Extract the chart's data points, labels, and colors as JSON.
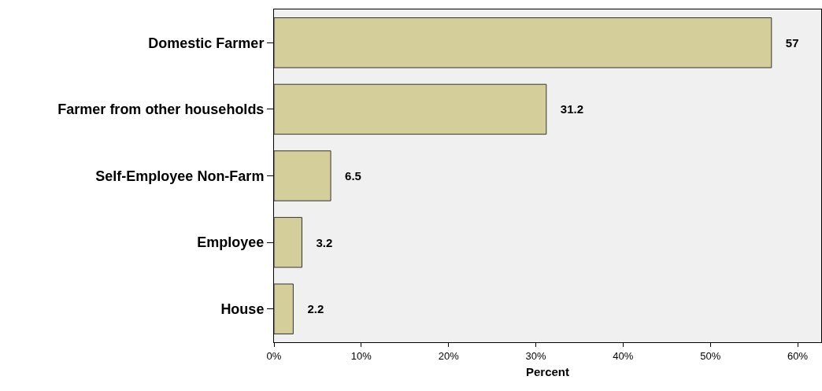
{
  "chart_data": {
    "type": "bar",
    "orientation": "horizontal",
    "categories": [
      "Domestic Farmer",
      "Farmer from other households",
      "Self-Employee Non-Farm",
      "Employee",
      "House"
    ],
    "values": [
      57,
      31.2,
      6.5,
      3.2,
      2.2
    ],
    "color": "#d3ce9a",
    "data_labels": true,
    "xlabel": "Percent",
    "xlim": [
      0,
      62.7
    ],
    "xticks": [
      {
        "value": 0,
        "label": "0%"
      },
      {
        "value": 10,
        "label": "10%"
      },
      {
        "value": 20,
        "label": "20%"
      },
      {
        "value": 30,
        "label": "30%"
      },
      {
        "value": 40,
        "label": "40%"
      },
      {
        "value": 50,
        "label": "50%"
      },
      {
        "value": 60,
        "label": "60%"
      }
    ],
    "grid": false
  }
}
